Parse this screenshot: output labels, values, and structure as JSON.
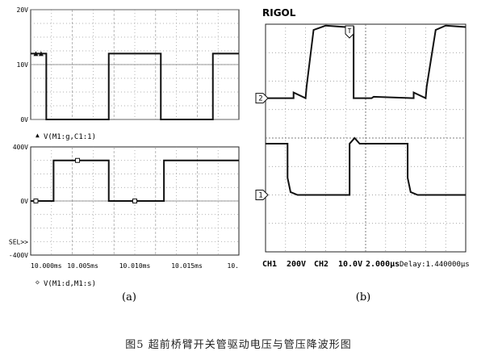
{
  "caption": "图5  超前桥臂开关管驱动电压与管压降波形图",
  "chart_data": [
    {
      "type": "line",
      "panel_label": "(a)",
      "x_ticks": [
        "10.000ms",
        "10.005ms",
        "10.010ms",
        "10.015ms",
        "10."
      ],
      "xlim": [
        10.0,
        10.02
      ],
      "series": [
        {
          "name": "V(M1:g,C1:1)",
          "legend_marker": "▲",
          "y_ticks": [
            "20V",
            "10V",
            "0V"
          ],
          "ylim": [
            0,
            20
          ],
          "x": [
            10.0,
            10.0015,
            10.0015,
            10.0075,
            10.0075,
            10.0125,
            10.0125,
            10.0175,
            10.0175,
            10.02
          ],
          "values": [
            12,
            12,
            0,
            0,
            12,
            12,
            0,
            0,
            12,
            12
          ]
        },
        {
          "name": "V(M1:d,M1:s)",
          "legend_marker": "◇",
          "y_ticks": [
            "400V",
            "0V",
            "SEL>>",
            "-400V"
          ],
          "ylim": [
            -400,
            400
          ],
          "x": [
            10.0,
            10.0022,
            10.0022,
            10.0075,
            10.0075,
            10.0128,
            10.0128,
            10.02
          ],
          "values": [
            0,
            0,
            300,
            300,
            0,
            0,
            300,
            300
          ]
        }
      ]
    },
    {
      "type": "line",
      "panel_label": "(b)",
      "brand": "RIGOL",
      "status": {
        "ch1_label": "CH1",
        "ch1_scale": "200V",
        "ch2_label": "CH2",
        "ch2_scale": "10.0V",
        "timebase": "2.000μs",
        "delay": "Delay:1.440000μs"
      },
      "trigger_marker": "T",
      "divisions_x": 10,
      "divisions_y": 8,
      "series": [
        {
          "name": "CH2",
          "marker": "2",
          "x_div": [
            0,
            1.4,
            1.4,
            2.0,
            2.05,
            2.4,
            3.0,
            4.0,
            4.4,
            4.4,
            5.3,
            5.4,
            7.4,
            7.4,
            8.0,
            8.05,
            8.5,
            9.0,
            10.0
          ],
          "y_div": [
            0,
            0,
            0.2,
            0,
            0.4,
            2.4,
            2.55,
            2.5,
            2.5,
            0,
            0,
            0.05,
            0,
            0.2,
            0,
            0.4,
            2.4,
            2.55,
            2.5
          ]
        },
        {
          "name": "CH1",
          "marker": "1",
          "x_div": [
            0,
            1.1,
            1.1,
            1.25,
            1.6,
            4.2,
            4.2,
            4.45,
            4.7,
            7.1,
            7.1,
            7.25,
            7.6,
            10.0
          ],
          "y_div": [
            1.8,
            1.8,
            0.6,
            0.1,
            0.0,
            0.0,
            1.8,
            2.0,
            1.8,
            1.8,
            0.6,
            0.1,
            0.0,
            0.0
          ]
        }
      ]
    }
  ]
}
